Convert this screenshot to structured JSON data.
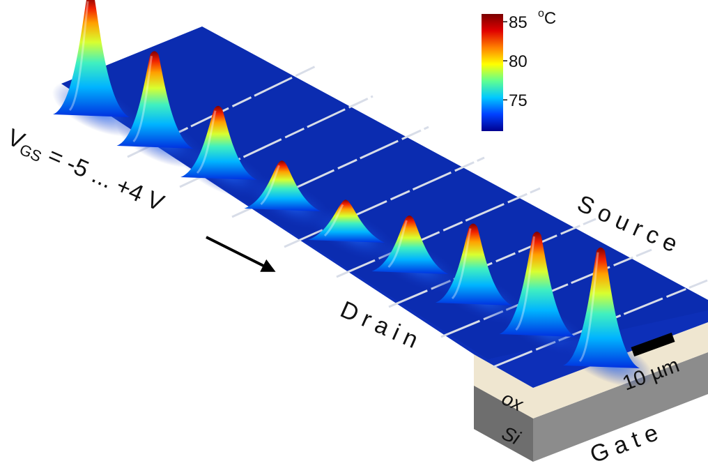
{
  "colorbar": {
    "unit": "°C",
    "unit_sup": "o",
    "unit_letter": "C",
    "ticks": [
      "85",
      "80",
      "75"
    ],
    "tick_values": [
      85,
      80,
      75
    ],
    "range": [
      71,
      86
    ],
    "colors": [
      "#00008f",
      "#0040ff",
      "#00c8ff",
      "#60ff90",
      "#ffff00",
      "#ff8000",
      "#e00000",
      "#7a0000"
    ]
  },
  "sweep": {
    "prefix": "V",
    "subscript": "GS",
    "range_text": " = -5 ... +4 V",
    "steps": 9,
    "peak_temperatures_c": [
      85,
      82,
      79,
      76,
      75,
      77,
      80,
      83,
      85
    ]
  },
  "labels": {
    "source": "Source",
    "drain": "Drain",
    "gate": "Gate",
    "oxide": "ox",
    "silicon": "Si",
    "scale_bar": "10 µm"
  },
  "colors": {
    "surface_base": "#0d2fb8",
    "oxide": "#efe6d0",
    "silicon": "#8a8a8a",
    "electrode_line": "#d8dde8"
  }
}
